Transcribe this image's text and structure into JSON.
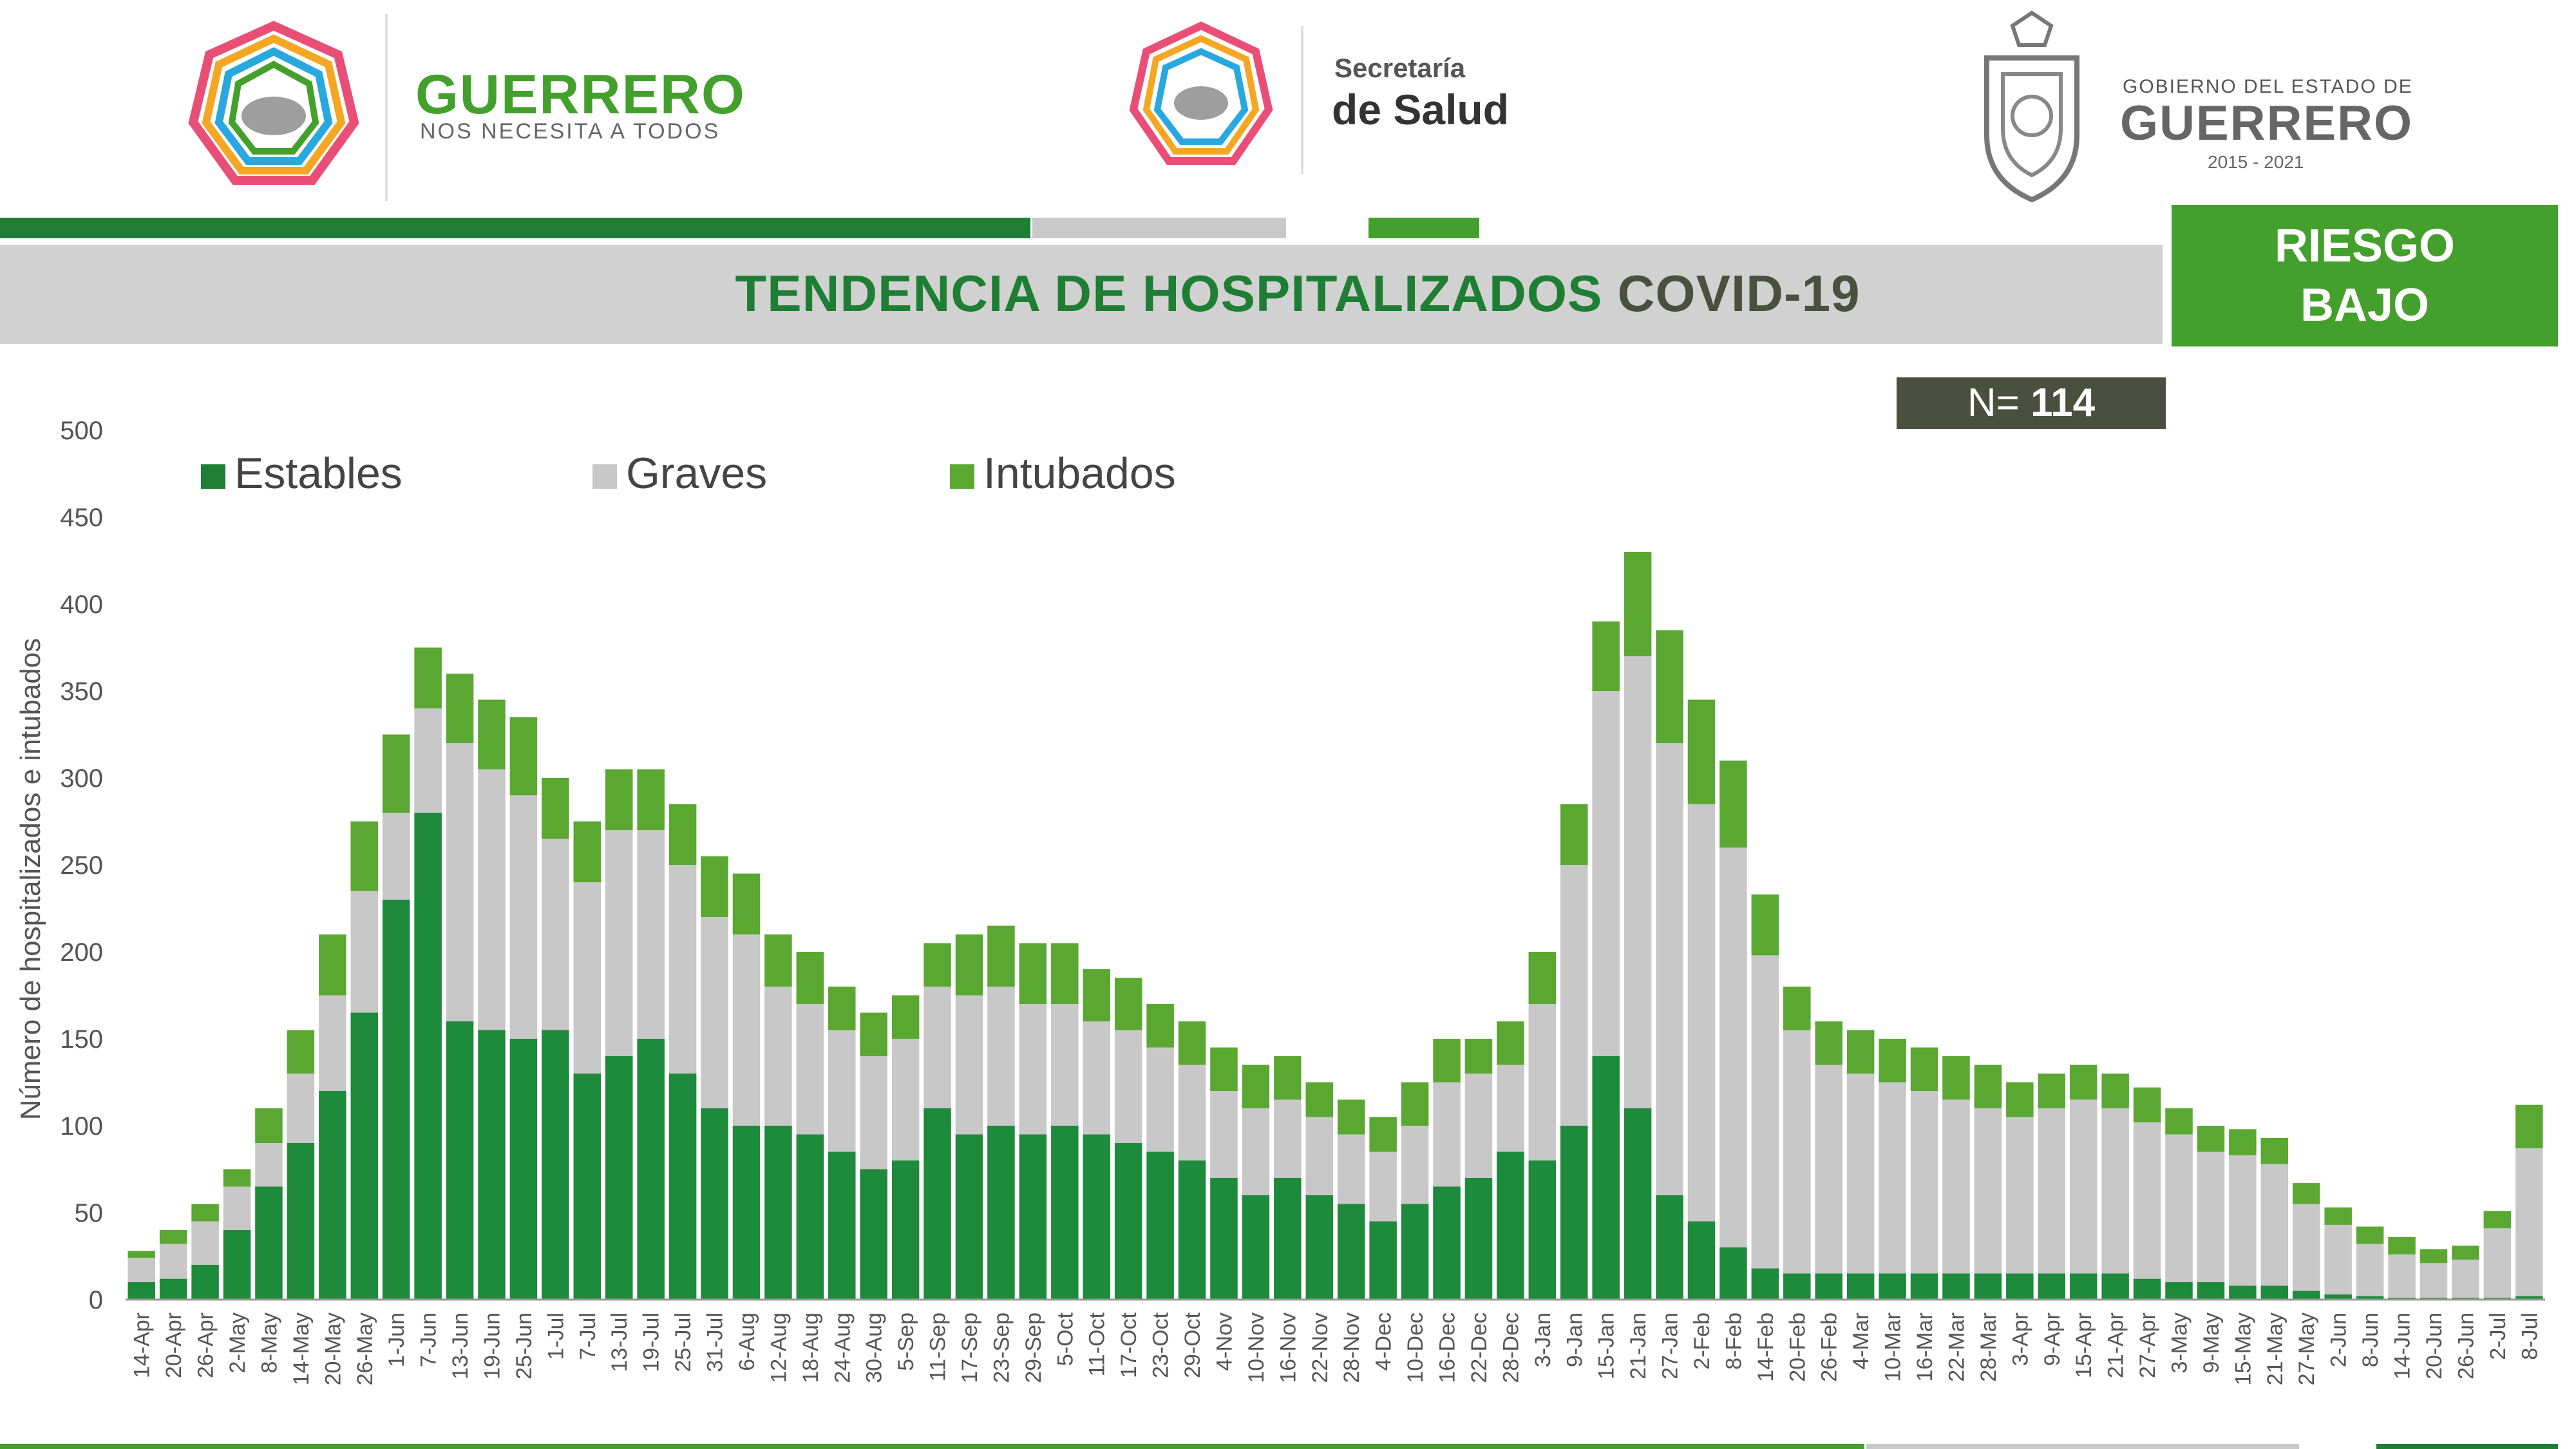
{
  "header": {
    "left_logo": {
      "title": "GUERRERO",
      "subtitle": "NOS NECESITA A TODOS"
    },
    "middle_logo": {
      "line1": "Secretaría",
      "line2": "de Salud"
    },
    "right_logo": {
      "line1": "GOBIERNO DEL ESTADO DE",
      "line2": "GUERRERO",
      "line3": "2015 - 2021"
    }
  },
  "title": {
    "part1": "TENDENCIA DE HOSPITALIZADOS",
    "part2": "COVID-19"
  },
  "risk": {
    "line1": "RIESGO",
    "line2": "BAJO"
  },
  "n_badge": {
    "label": "N=",
    "value": "114"
  },
  "colors": {
    "estables": "#1e8a3b",
    "graves": "#c8c8c8",
    "intubados": "#5aa832",
    "accent_dark_green": "#1e7e34",
    "accent_green": "#43a02c",
    "band_gray": "#d1d1d1"
  },
  "chart_data": {
    "type": "bar",
    "stacked": true,
    "ylabel": "Número de hospitalizados e intubados",
    "xlabel": "",
    "ylim": [
      0,
      500
    ],
    "yticks": [
      0,
      50,
      100,
      150,
      200,
      250,
      300,
      350,
      400,
      450,
      500
    ],
    "x_tick_labels": [
      "14-Apr",
      "20-Apr",
      "26-Apr",
      "2-May",
      "8-May",
      "14-May",
      "20-May",
      "26-May",
      "1-Jun",
      "7-Jun",
      "13-Jun",
      "19-Jun",
      "25-Jun",
      "1-Jul",
      "7-Jul",
      "13-Jul",
      "19-Jul",
      "25-Jul",
      "31-Jul",
      "6-Aug",
      "12-Aug",
      "18-Aug",
      "24-Aug",
      "30-Aug",
      "5-Sep",
      "11-Sep",
      "17-Sep",
      "23-Sep",
      "29-Sep",
      "5-Oct",
      "11-Oct",
      "17-Oct",
      "23-Oct",
      "29-Oct",
      "4-Nov",
      "10-Nov",
      "16-Nov",
      "22-Nov",
      "28-Nov",
      "4-Dec",
      "10-Dec",
      "16-Dec",
      "22-Dec",
      "28-Dec",
      "3-Jan",
      "9-Jan",
      "15-Jan",
      "21-Jan",
      "27-Jan",
      "2-Feb",
      "8-Feb",
      "14-Feb",
      "20-Feb",
      "26-Feb",
      "4-Mar",
      "10-Mar",
      "16-Mar",
      "22-Mar",
      "28-Mar",
      "3-Apr",
      "9-Apr",
      "15-Apr",
      "21-Apr",
      "27-Apr",
      "3-May",
      "9-May",
      "15-May",
      "21-May",
      "27-May",
      "2-Jun",
      "8-Jun",
      "14-Jun",
      "20-Jun",
      "26-Jun",
      "2-Jul",
      "8-Jul"
    ],
    "legend": [
      "Estables",
      "Graves",
      "Intubados"
    ],
    "legend_position": "top-left",
    "grid": false,
    "series": [
      {
        "name": "Estables",
        "values": [
          10,
          12,
          20,
          40,
          65,
          90,
          120,
          165,
          230,
          280,
          160,
          155,
          150,
          155,
          130,
          140,
          150,
          130,
          110,
          100,
          100,
          95,
          85,
          75,
          80,
          110,
          95,
          100,
          95,
          100,
          95,
          90,
          85,
          80,
          70,
          60,
          70,
          60,
          55,
          45,
          55,
          65,
          70,
          85,
          80,
          100,
          140,
          110,
          60,
          45,
          30,
          18,
          15,
          15,
          15,
          15,
          15,
          15,
          15,
          15,
          15,
          15,
          15,
          12,
          10,
          10,
          8,
          8,
          5,
          3,
          2,
          1,
          1,
          1,
          1,
          2
        ]
      },
      {
        "name": "Graves",
        "values": [
          14,
          20,
          25,
          25,
          25,
          40,
          55,
          70,
          50,
          60,
          160,
          150,
          140,
          110,
          110,
          130,
          120,
          120,
          110,
          110,
          80,
          75,
          70,
          65,
          70,
          70,
          80,
          80,
          75,
          70,
          65,
          65,
          60,
          55,
          50,
          50,
          45,
          45,
          40,
          40,
          45,
          60,
          60,
          50,
          90,
          150,
          210,
          260,
          260,
          240,
          230,
          180,
          140,
          120,
          115,
          110,
          105,
          100,
          95,
          90,
          95,
          100,
          95,
          90,
          85,
          75,
          75,
          70,
          50,
          40,
          30,
          25,
          20,
          22,
          40,
          85
        ]
      },
      {
        "name": "Intubados",
        "values": [
          4,
          8,
          10,
          10,
          20,
          25,
          35,
          40,
          45,
          35,
          40,
          40,
          45,
          35,
          35,
          35,
          35,
          35,
          35,
          35,
          30,
          30,
          25,
          25,
          25,
          25,
          35,
          35,
          35,
          35,
          30,
          30,
          25,
          25,
          25,
          25,
          25,
          20,
          20,
          20,
          25,
          25,
          20,
          25,
          30,
          35,
          40,
          60,
          65,
          60,
          50,
          35,
          25,
          25,
          25,
          25,
          25,
          25,
          25,
          20,
          20,
          20,
          20,
          20,
          15,
          15,
          15,
          15,
          12,
          10,
          10,
          10,
          8,
          8,
          10,
          25
        ]
      }
    ]
  }
}
